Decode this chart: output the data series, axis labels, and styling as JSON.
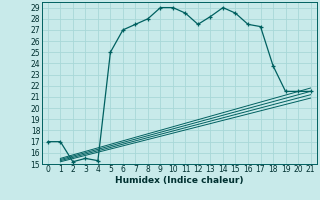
{
  "title": "",
  "xlabel": "Humidex (Indice chaleur)",
  "xlim": [
    -0.5,
    21.5
  ],
  "ylim": [
    15,
    29.5
  ],
  "bg_color": "#c8eaea",
  "grid_color": "#a8d8d8",
  "line_color": "#006060",
  "xticks": [
    0,
    1,
    2,
    3,
    4,
    5,
    6,
    7,
    8,
    9,
    10,
    11,
    12,
    13,
    14,
    15,
    16,
    17,
    18,
    19,
    20,
    21
  ],
  "yticks": [
    15,
    16,
    17,
    18,
    19,
    20,
    21,
    22,
    23,
    24,
    25,
    26,
    27,
    28,
    29
  ],
  "main_line_x": [
    0,
    1,
    2,
    3,
    4,
    5,
    6,
    7,
    8,
    9,
    10,
    11,
    12,
    13,
    14,
    15,
    16,
    17,
    18,
    19,
    20,
    21
  ],
  "main_line_y": [
    17.0,
    17.0,
    15.2,
    15.5,
    15.3,
    25.0,
    27.0,
    27.5,
    28.0,
    29.0,
    29.0,
    28.5,
    27.5,
    28.2,
    29.0,
    28.5,
    27.5,
    27.3,
    23.8,
    21.5,
    21.5,
    21.5
  ],
  "ref_lines": [
    {
      "x": [
        1,
        21
      ],
      "y": [
        15.5,
        21.8
      ]
    },
    {
      "x": [
        1,
        21
      ],
      "y": [
        15.4,
        21.5
      ]
    },
    {
      "x": [
        1,
        21
      ],
      "y": [
        15.3,
        21.2
      ]
    },
    {
      "x": [
        1,
        21
      ],
      "y": [
        15.2,
        20.9
      ]
    }
  ],
  "tick_fontsize": 5.5,
  "xlabel_fontsize": 6.5
}
